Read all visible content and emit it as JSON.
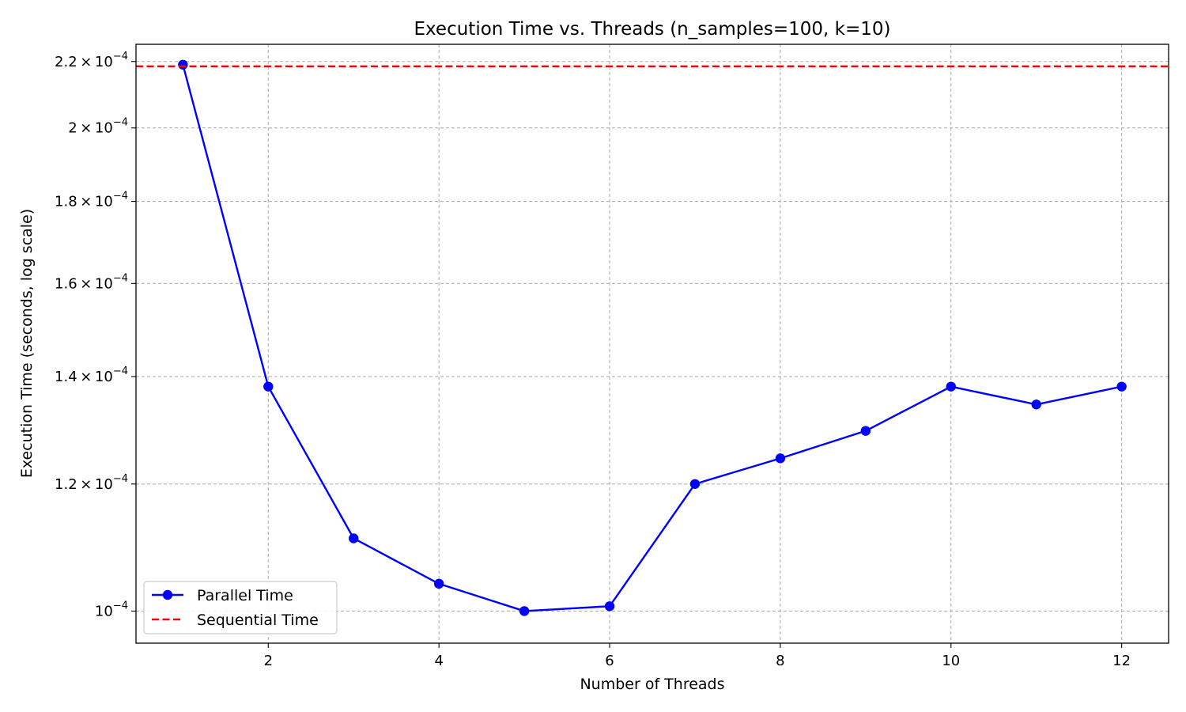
{
  "chart_data": {
    "type": "line",
    "title": "Execution Time vs. Threads (n_samples=100, k=10)",
    "xlabel": "Number of Threads",
    "ylabel": "Execution Time (seconds, log scale)",
    "yscale": "log",
    "xlim": [
      0.45,
      12.55
    ],
    "ylim": [
      9.55e-05,
      0.0002255
    ],
    "x": [
      1,
      2,
      3,
      4,
      5,
      6,
      7,
      8,
      9,
      10,
      11,
      12
    ],
    "x_ticks": [
      2,
      4,
      6,
      8,
      10,
      12
    ],
    "y_ticks": [
      {
        "value": 0.0001,
        "mantissa": "",
        "base": "10",
        "exp": "−4"
      },
      {
        "value": 0.00012,
        "mantissa": "1.2",
        "base": "10",
        "exp": "−4"
      },
      {
        "value": 0.00014,
        "mantissa": "1.4",
        "base": "10",
        "exp": "−4"
      },
      {
        "value": 0.00016,
        "mantissa": "1.6",
        "base": "10",
        "exp": "−4"
      },
      {
        "value": 0.00018,
        "mantissa": "1.8",
        "base": "10",
        "exp": "−4"
      },
      {
        "value": 0.0002,
        "mantissa": "2",
        "base": "10",
        "exp": "−4"
      },
      {
        "value": 0.00022,
        "mantissa": "2.2",
        "base": "10",
        "exp": "−4"
      }
    ],
    "grid": true,
    "legend_position": "lower-left",
    "series": [
      {
        "name": "Parallel Time",
        "color": "#0000ff",
        "style": "solid-marker",
        "values": [
          0.000219,
          0.000138,
          0.000111,
          0.000104,
          0.0001,
          0.0001007,
          0.00012,
          0.0001245,
          0.0001295,
          0.000138,
          0.0001345,
          0.000138
        ]
      },
      {
        "name": "Sequential Time",
        "color": "#ff0000",
        "style": "dashed",
        "constant": 0.0002185
      }
    ]
  }
}
